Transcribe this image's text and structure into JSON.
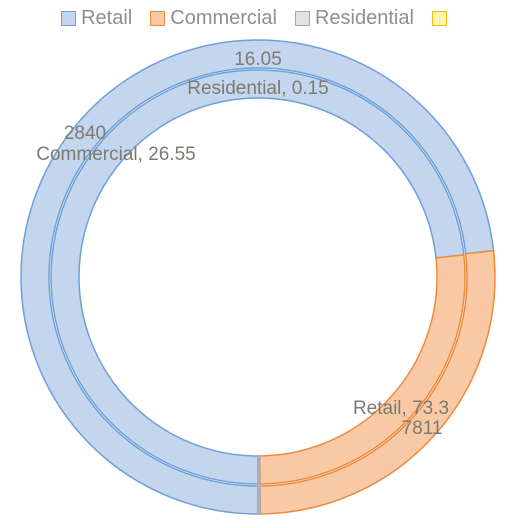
{
  "chart_data": {
    "type": "doughnut",
    "legend": {
      "placement": "top",
      "entries": [
        {
          "name": "Retail",
          "fill": "#c4d6ee",
          "stroke": "#6f9fd8"
        },
        {
          "name": "Commercial",
          "fill": "#f8c9a4",
          "stroke": "#ee8a3c"
        },
        {
          "name": "Residential",
          "fill": "#e3e3e3",
          "stroke": "#a8a8a8"
        },
        {
          "name": "",
          "fill": "#fff2b3",
          "stroke": "#f2c200"
        }
      ]
    },
    "categories": [
      "Retail",
      "Commercial",
      "Residential"
    ],
    "series": [
      {
        "ring": "outer",
        "values": [
          7811,
          2840,
          16.05
        ]
      },
      {
        "ring": "inner",
        "values": [
          73.3,
          26.55,
          0.15
        ]
      }
    ],
    "labels": {
      "residential_outer": "16.05",
      "residential_inner": "Residential, 0.15",
      "commercial_outer": "2840",
      "commercial_inner": "Commercial, 26.55",
      "retail_inner": "Retail, 73.3",
      "retail_outer": "7811"
    },
    "colors": {
      "retail_fill": "#c4d6ee",
      "retail_stroke": "#6f9fd8",
      "commercial_fill": "#f8c9a4",
      "commercial_stroke": "#ee8a3c",
      "residential_fill": "#d0d0d0",
      "residential_stroke": "#a8a8a8"
    }
  }
}
